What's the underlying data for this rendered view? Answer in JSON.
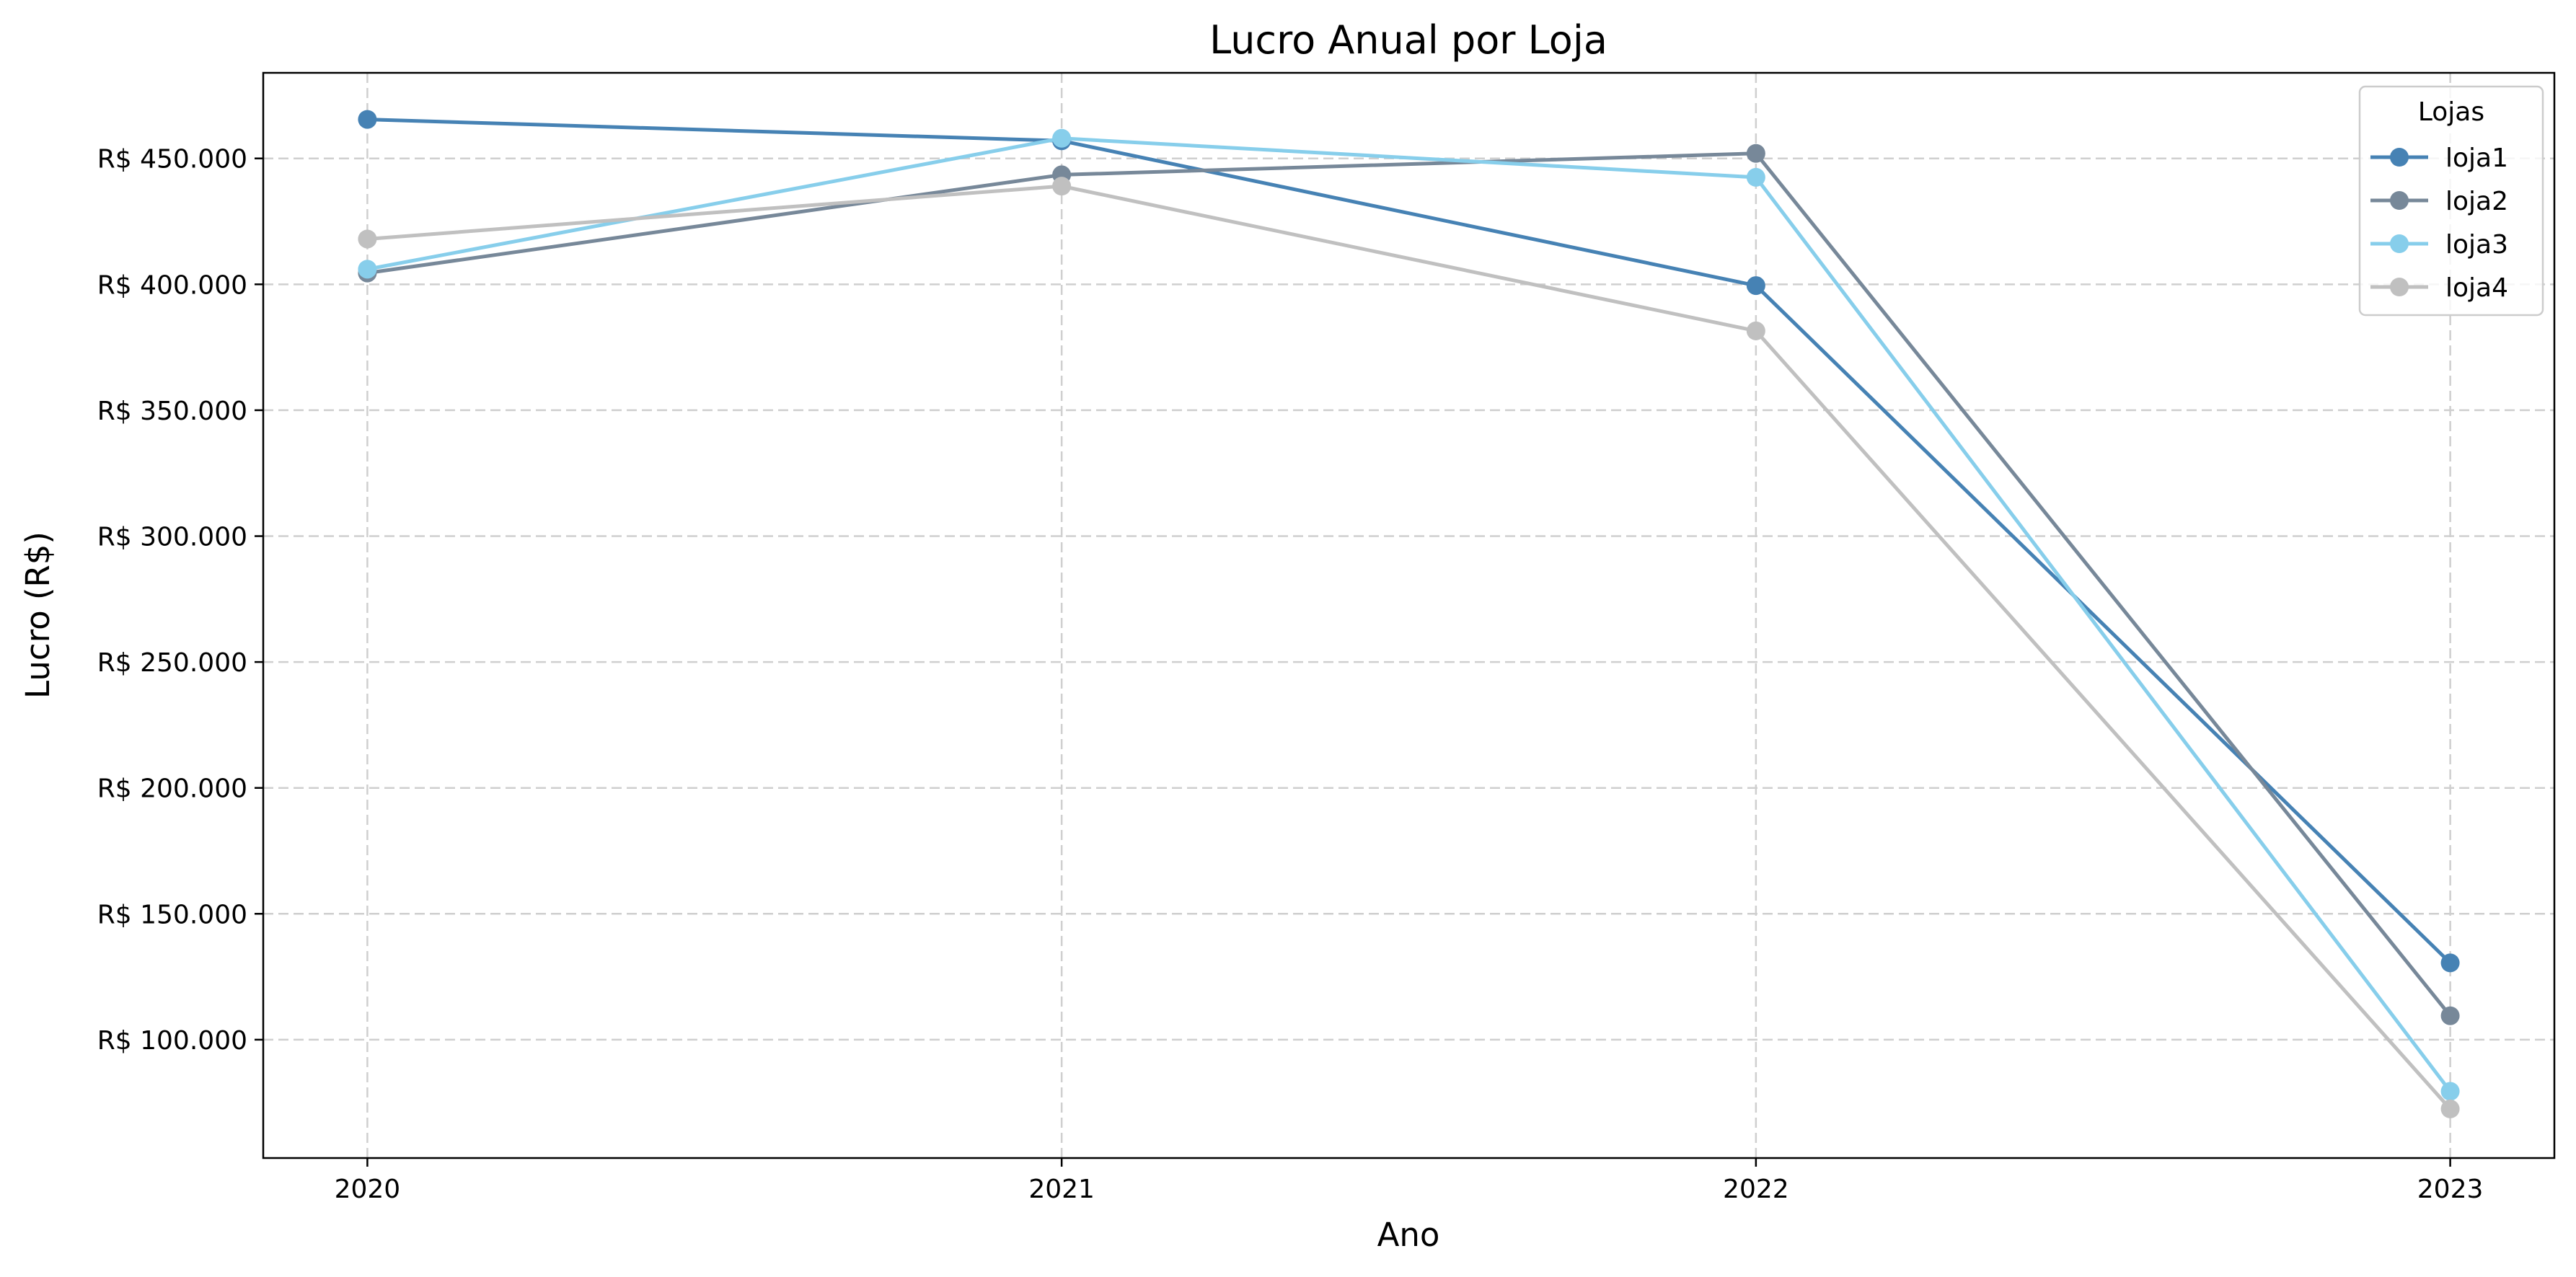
{
  "chart_data": {
    "type": "line",
    "title": "Lucro Anual por Loja",
    "xlabel": "Ano",
    "ylabel": "Lucro (R$)",
    "x": [
      2020,
      2021,
      2022,
      2023
    ],
    "x_tick_labels": [
      "2020",
      "2021",
      "2022",
      "2023"
    ],
    "xlim": [
      2019.85,
      2023.15
    ],
    "ylim": [
      53000,
      484000
    ],
    "y_ticks": [
      100000,
      150000,
      200000,
      250000,
      300000,
      350000,
      400000,
      450000
    ],
    "y_tick_labels": [
      "R$ 100.000",
      "R$ 150.000",
      "R$ 200.000",
      "R$ 250.000",
      "R$ 300.000",
      "R$ 350.000",
      "R$ 400.000",
      "R$ 450.000"
    ],
    "grid": true,
    "legend": {
      "title": "Lojas",
      "placement": "top-right"
    },
    "series": [
      {
        "name": "loja1",
        "color": "#4682b4",
        "values": [
          465500,
          457000,
          399500,
          130500
        ]
      },
      {
        "name": "loja2",
        "color": "#778899",
        "values": [
          404500,
          443500,
          452000,
          109500
        ]
      },
      {
        "name": "loja3",
        "color": "#87ceeb",
        "values": [
          406000,
          458000,
          442500,
          79500
        ]
      },
      {
        "name": "loja4",
        "color": "#c0c0c0",
        "values": [
          418000,
          439000,
          381500,
          72500
        ]
      }
    ]
  }
}
